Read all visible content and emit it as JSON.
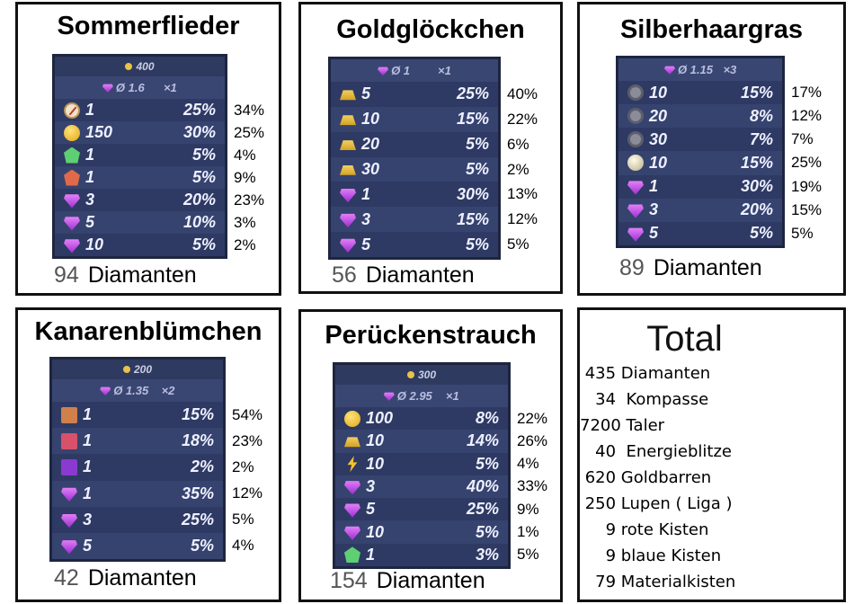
{
  "panels": [
    {
      "id": "p1",
      "title": "Sommerflieder",
      "header_coin": "400",
      "avg": "Ø 1.6",
      "mult": "×1",
      "rows": [
        {
          "icon": "compass",
          "amount": "1",
          "chance": "25%",
          "result": "34%"
        },
        {
          "icon": "coin",
          "amount": "150",
          "chance": "30%",
          "result": "25%"
        },
        {
          "icon": "star-green",
          "amount": "1",
          "chance": "5%",
          "result": "4%"
        },
        {
          "icon": "badge-red",
          "amount": "1",
          "chance": "5%",
          "result": "9%"
        },
        {
          "icon": "gem",
          "amount": "3",
          "chance": "20%",
          "result": "23%"
        },
        {
          "icon": "gem",
          "amount": "5",
          "chance": "10%",
          "result": "3%"
        },
        {
          "icon": "gem",
          "amount": "10",
          "chance": "5%",
          "result": "2%"
        }
      ],
      "footer_count": "94",
      "footer_label": "Diamanten"
    },
    {
      "id": "p2",
      "title": "Goldglöckchen",
      "avg": "Ø 1",
      "mult": "×1",
      "rows": [
        {
          "icon": "bar",
          "amount": "5",
          "chance": "25%",
          "result": "40%"
        },
        {
          "icon": "bar",
          "amount": "10",
          "chance": "15%",
          "result": "22%"
        },
        {
          "icon": "bar",
          "amount": "20",
          "chance": "5%",
          "result": "6%"
        },
        {
          "icon": "bar",
          "amount": "30",
          "chance": "5%",
          "result": "2%"
        },
        {
          "icon": "gem",
          "amount": "1",
          "chance": "30%",
          "result": "13%"
        },
        {
          "icon": "gem",
          "amount": "3",
          "chance": "15%",
          "result": "12%"
        },
        {
          "icon": "gem",
          "amount": "5",
          "chance": "5%",
          "result": "5%"
        }
      ],
      "footer_count": "56",
      "footer_label": "Diamanten"
    },
    {
      "id": "p3",
      "title": "Silberhaargras",
      "avg": "Ø 1.15",
      "mult": "×3",
      "rows": [
        {
          "icon": "token",
          "amount": "10",
          "chance": "15%",
          "result": "17%"
        },
        {
          "icon": "token",
          "amount": "20",
          "chance": "8%",
          "result": "12%"
        },
        {
          "icon": "token",
          "amount": "30",
          "chance": "7%",
          "result": "7%"
        },
        {
          "icon": "pearl",
          "amount": "10",
          "chance": "15%",
          "result": "25%"
        },
        {
          "icon": "gem",
          "amount": "1",
          "chance": "30%",
          "result": "19%"
        },
        {
          "icon": "gem",
          "amount": "3",
          "chance": "20%",
          "result": "15%"
        },
        {
          "icon": "gem",
          "amount": "5",
          "chance": "5%",
          "result": "5%"
        }
      ],
      "footer_count": "89",
      "footer_label": "Diamanten"
    },
    {
      "id": "p4",
      "title": "Kanarenblümchen",
      "header_coin": "200",
      "avg": "Ø 1.35",
      "mult": "×2",
      "rows": [
        {
          "icon": "chest-orange",
          "amount": "1",
          "chance": "15%",
          "result": "54%"
        },
        {
          "icon": "chest-red",
          "amount": "1",
          "chance": "18%",
          "result": "23%"
        },
        {
          "icon": "chest-purple",
          "amount": "1",
          "chance": "2%",
          "result": "2%"
        },
        {
          "icon": "gem",
          "amount": "1",
          "chance": "35%",
          "result": "12%"
        },
        {
          "icon": "gem",
          "amount": "3",
          "chance": "25%",
          "result": "5%"
        },
        {
          "icon": "gem",
          "amount": "5",
          "chance": "5%",
          "result": "4%"
        }
      ],
      "footer_count": "42",
      "footer_label": "Diamanten"
    },
    {
      "id": "p5",
      "title": "Perückenstrauch",
      "header_coin": "300",
      "avg": "Ø 2.95",
      "mult": "×1",
      "rows": [
        {
          "icon": "coin",
          "amount": "100",
          "chance": "8%",
          "result": "22%"
        },
        {
          "icon": "bar",
          "amount": "10",
          "chance": "14%",
          "result": "26%"
        },
        {
          "icon": "bolt",
          "amount": "10",
          "chance": "5%",
          "result": "4%"
        },
        {
          "icon": "gem",
          "amount": "3",
          "chance": "40%",
          "result": "33%"
        },
        {
          "icon": "gem",
          "amount": "5",
          "chance": "25%",
          "result": "9%"
        },
        {
          "icon": "gem",
          "amount": "10",
          "chance": "5%",
          "result": "1%"
        },
        {
          "icon": "star-green",
          "amount": "1",
          "chance": "3%",
          "result": "5%"
        }
      ],
      "footer_count": "154",
      "footer_label": "Diamanten"
    }
  ],
  "total": {
    "title": "Total",
    "items": [
      " 435 Diamanten",
      "   34  Kompasse",
      "7200 Taler",
      "   40  Energieblitze",
      " 620 Goldbarren",
      " 250 Lupen ( Liga )",
      "     9 rote Kisten",
      "     9 blaue Kisten",
      "   79 Materialkisten"
    ]
  }
}
